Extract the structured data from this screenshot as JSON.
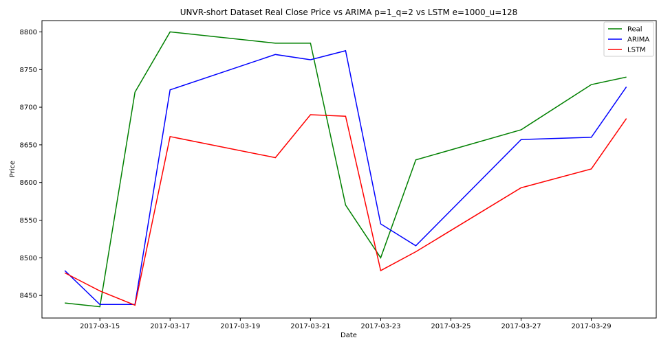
{
  "chart_data": {
    "type": "line",
    "title": "UNVR-short Dataset Real Close Price vs ARIMA p=1_q=2 vs LSTM e=1000_u=128",
    "xlabel": "Date",
    "ylabel": "Price",
    "x": [
      "2017-03-14",
      "2017-03-15",
      "2017-03-16",
      "2017-03-17",
      "2017-03-20",
      "2017-03-21",
      "2017-03-22",
      "2017-03-23",
      "2017-03-24",
      "2017-03-27",
      "2017-03-29",
      "2017-03-30"
    ],
    "x_ticks": [
      "2017-03-15",
      "2017-03-17",
      "2017-03-19",
      "2017-03-21",
      "2017-03-23",
      "2017-03-25",
      "2017-03-27",
      "2017-03-29"
    ],
    "x_range": [
      "2017-03-13T08:24",
      "2017-03-30T20:24"
    ],
    "ylim": [
      8420,
      8815
    ],
    "y_ticks": [
      8450,
      8500,
      8550,
      8600,
      8650,
      8700,
      8750,
      8800
    ],
    "grid": false,
    "legend_position": "top-right",
    "series": [
      {
        "name": "Real",
        "color": "#008000",
        "values": [
          8440,
          8435,
          8720,
          8800,
          8785,
          8785,
          8570,
          8500,
          8630,
          8670,
          8730,
          8740
        ]
      },
      {
        "name": "ARIMA",
        "color": "#0000ff",
        "values": [
          8483,
          8438,
          8438,
          8723,
          8770,
          8763,
          8775,
          8545,
          8516,
          8657,
          8660,
          8727
        ]
      },
      {
        "name": "LSTM",
        "color": "#ff0000",
        "values": [
          8480,
          8456,
          8437,
          8661,
          8633,
          8690,
          8688,
          8483,
          8508,
          8593,
          8618,
          8685
        ]
      }
    ]
  }
}
